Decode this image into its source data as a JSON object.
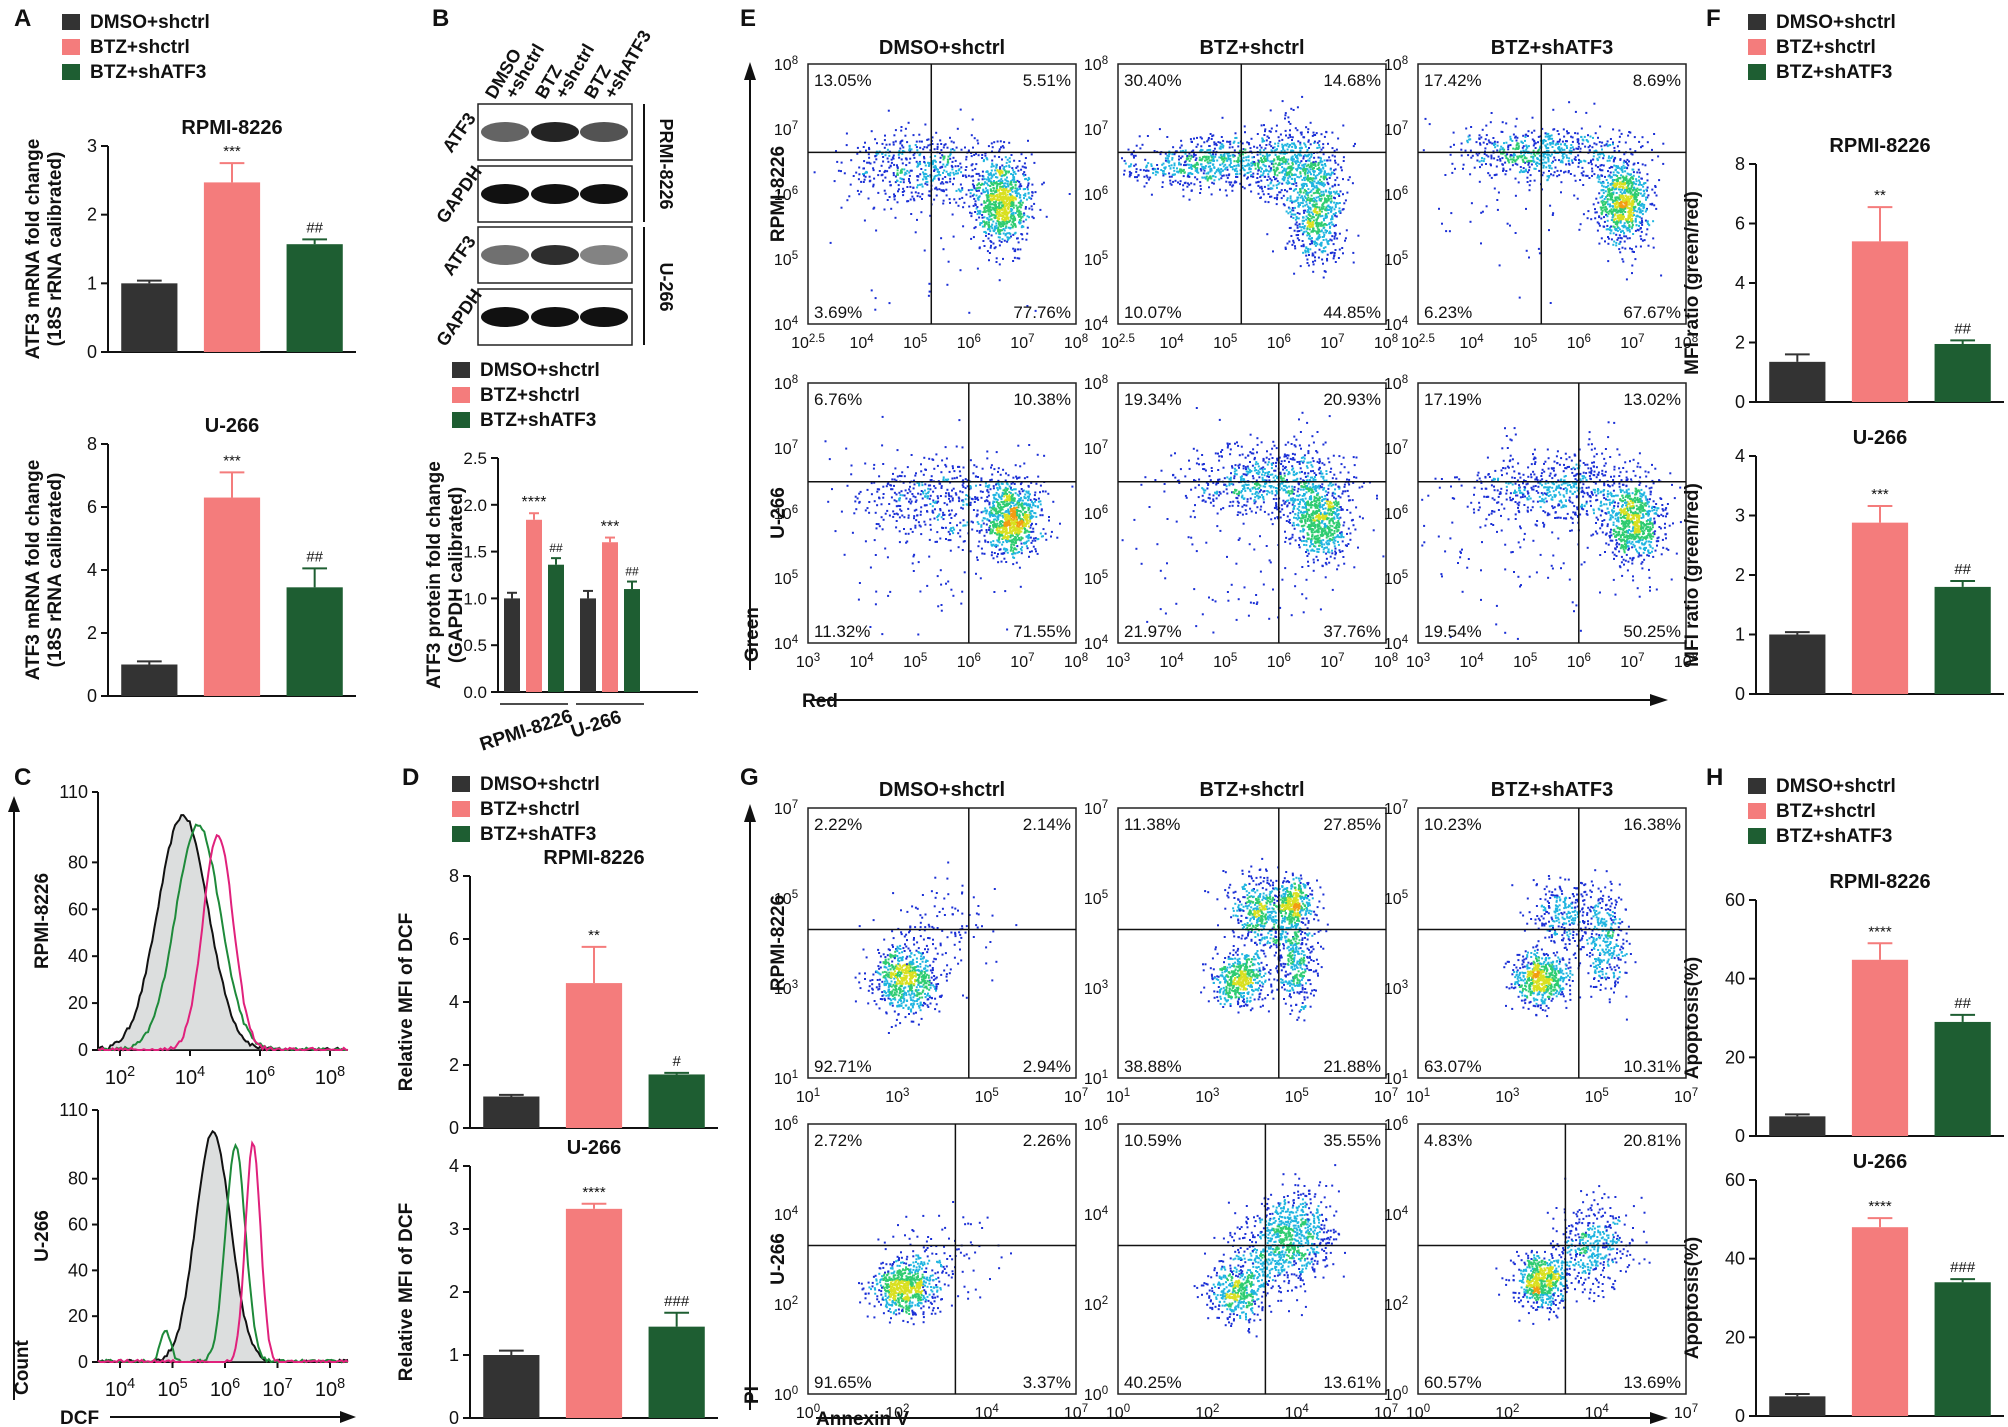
{
  "legend": {
    "groups": [
      "DMSO+shctrl",
      "BTZ+shctrl",
      "BTZ+shATF3"
    ],
    "colors": [
      "#333333",
      "#f47c7c",
      "#1e5e32"
    ]
  },
  "panel_labels": [
    "A",
    "B",
    "C",
    "D",
    "E",
    "F",
    "G",
    "H"
  ],
  "cell_lines": [
    "RPMI-8226",
    "U-266"
  ],
  "chart_data": [
    {
      "id": "A_rpmi",
      "type": "bar",
      "title": "RPMI-8226",
      "ylabel": [
        "ATF3 mRNA fold change",
        "(18S rRNA calibrated)"
      ],
      "ylim": [
        0,
        3
      ],
      "yticks": [
        0,
        1,
        2,
        3
      ],
      "values": [
        1.0,
        2.47,
        1.57
      ],
      "errors": [
        0.04,
        0.28,
        0.07
      ],
      "sig": [
        "",
        "***",
        "##"
      ]
    },
    {
      "id": "A_u266",
      "type": "bar",
      "title": "U-266",
      "ylabel": [
        "ATF3 mRNA fold change",
        "(18S rRNA calibrated)"
      ],
      "ylim": [
        0,
        8
      ],
      "yticks": [
        0,
        2,
        4,
        6,
        8
      ],
      "values": [
        1.0,
        6.3,
        3.45
      ],
      "errors": [
        0.1,
        0.8,
        0.6
      ],
      "sig": [
        "",
        "***",
        "##"
      ]
    },
    {
      "id": "B_protein",
      "type": "bar",
      "ylabel": [
        "ATF3 protein fold change",
        "(GAPDH calibrated)"
      ],
      "ylim": [
        0,
        2.5
      ],
      "yticks": [
        "0.0",
        "0.5",
        "1.0",
        "1.5",
        "2.0",
        "2.5"
      ],
      "categories": [
        "RPMI-8226",
        "U-266"
      ],
      "series": [
        {
          "name": "DMSO+shctrl",
          "values": [
            1.0,
            1.0
          ],
          "errors": [
            0.06,
            0.08
          ]
        },
        {
          "name": "BTZ+shctrl",
          "values": [
            1.84,
            1.6
          ],
          "errors": [
            0.07,
            0.05
          ]
        },
        {
          "name": "BTZ+shATF3",
          "values": [
            1.36,
            1.1
          ],
          "errors": [
            0.07,
            0.08
          ]
        }
      ],
      "sig": [
        [
          "",
          "****",
          "##"
        ],
        [
          "",
          "***",
          "##"
        ]
      ]
    },
    {
      "id": "D_rpmi",
      "type": "bar",
      "title": "RPMI-8226",
      "ylabel": [
        "Relative MFI of DCF"
      ],
      "ylim": [
        0,
        8
      ],
      "yticks": [
        0,
        2,
        4,
        6,
        8
      ],
      "values": [
        1.0,
        4.6,
        1.7
      ],
      "errors": [
        0.05,
        1.15,
        0.05
      ],
      "sig": [
        "",
        "**",
        "#"
      ]
    },
    {
      "id": "D_u266",
      "type": "bar",
      "title": "U-266",
      "ylabel": [
        "Relative MFI of DCF"
      ],
      "ylim": [
        0,
        4
      ],
      "yticks": [
        0,
        1,
        2,
        3,
        4
      ],
      "values": [
        1.0,
        3.32,
        1.45
      ],
      "errors": [
        0.07,
        0.08,
        0.22
      ],
      "sig": [
        "",
        "****",
        "###"
      ]
    },
    {
      "id": "F_rpmi",
      "type": "bar",
      "title": "RPMI-8226",
      "ylabel": [
        "MFI ratio (green/red)"
      ],
      "ylim": [
        0,
        8
      ],
      "yticks": [
        0,
        2,
        4,
        6,
        8
      ],
      "values": [
        1.35,
        5.4,
        1.95
      ],
      "errors": [
        0.25,
        1.15,
        0.12
      ],
      "sig": [
        "",
        "**",
        "##"
      ]
    },
    {
      "id": "F_u266",
      "type": "bar",
      "title": "U-266",
      "ylabel": [
        "MFI ratio (green/red)"
      ],
      "ylim": [
        0,
        4
      ],
      "yticks": [
        0,
        1,
        2,
        3,
        4
      ],
      "values": [
        1.0,
        2.88,
        1.8
      ],
      "errors": [
        0.04,
        0.28,
        0.1
      ],
      "sig": [
        "",
        "***",
        "##"
      ]
    },
    {
      "id": "H_rpmi",
      "type": "bar",
      "title": "RPMI-8226",
      "ylabel": [
        "Apoptosis(%)"
      ],
      "ylim": [
        0,
        60
      ],
      "yticks": [
        0,
        20,
        40,
        60
      ],
      "values": [
        5.0,
        44.8,
        29.0
      ],
      "errors": [
        0.5,
        4.2,
        1.8
      ],
      "sig": [
        "",
        "****",
        "##"
      ]
    },
    {
      "id": "H_u266",
      "type": "bar",
      "title": "U-266",
      "ylabel": [
        "Apoptosis(%)"
      ],
      "ylim": [
        0,
        60
      ],
      "yticks": [
        0,
        20,
        40,
        60
      ],
      "values": [
        5.0,
        48.0,
        34.0
      ],
      "errors": [
        0.6,
        2.3,
        0.8
      ],
      "sig": [
        "",
        "****",
        "###"
      ]
    }
  ],
  "flow_E": {
    "xlabel": "Red",
    "ylabel": "Green",
    "rows": [
      {
        "cell": "RPMI-8226",
        "quadrants": [
          [
            "13.05%",
            "5.51%",
            "3.69%",
            "77.76%"
          ],
          [
            "30.40%",
            "14.68%",
            "10.07%",
            "44.85%"
          ],
          [
            "17.42%",
            "8.69%",
            "6.23%",
            "67.67%"
          ]
        ]
      },
      {
        "cell": "U-266",
        "quadrants": [
          [
            "6.76%",
            "10.38%",
            "11.32%",
            "71.55%"
          ],
          [
            "19.34%",
            "20.93%",
            "21.97%",
            "37.76%"
          ],
          [
            "17.19%",
            "13.02%",
            "19.54%",
            "50.25%"
          ]
        ]
      }
    ],
    "y_ticks": [
      "4",
      "5",
      "6",
      "7",
      "8"
    ],
    "x_ticks_row1": [
      [
        "2.5",
        "4",
        "5",
        "6",
        "7",
        "8"
      ],
      [
        "2.5",
        "4",
        "5",
        "6",
        "7",
        "8"
      ],
      [
        "2.5",
        "4",
        "5",
        "6",
        "7",
        "8"
      ]
    ],
    "x_ticks_row2": [
      [
        "3",
        "4",
        "5",
        "6",
        "7",
        "8"
      ],
      [
        "3",
        "4",
        "5",
        "6",
        "7",
        "8"
      ],
      [
        "3",
        "4",
        "5",
        "6",
        "7",
        "8"
      ]
    ]
  },
  "flow_G": {
    "xlabel": "Annexin V",
    "ylabel": "PI",
    "rows": [
      {
        "cell": "RPMI-8226",
        "quadrants": [
          [
            "2.22%",
            "2.14%",
            "92.71%",
            "2.94%"
          ],
          [
            "11.38%",
            "27.85%",
            "38.88%",
            "21.88%"
          ],
          [
            "10.23%",
            "16.38%",
            "63.07%",
            "10.31%"
          ]
        ]
      },
      {
        "cell": "U-266",
        "quadrants": [
          [
            "2.72%",
            "2.26%",
            "91.65%",
            "3.37%"
          ],
          [
            "10.59%",
            "35.55%",
            "40.25%",
            "13.61%"
          ],
          [
            "4.83%",
            "20.81%",
            "60.57%",
            "13.69%"
          ]
        ]
      }
    ],
    "y_ticks_row1": [
      "1",
      "3",
      "5",
      "7"
    ],
    "y_ticks_row2": [
      "0",
      "2",
      "4",
      "6"
    ],
    "x_ticks_row1": [
      "1",
      "3",
      "5",
      "7"
    ],
    "x_ticks_row2": [
      "0",
      "2",
      "4",
      "7"
    ]
  },
  "histogram_C": {
    "xlabel": "DCF",
    "ylabel": "Count",
    "yticks": [
      "0",
      "20",
      "40",
      "60",
      "80",
      "110"
    ],
    "x_ticks_row1": [
      "2",
      "4",
      "6",
      "8"
    ],
    "x_ticks_row2": [
      "4",
      "5",
      "6",
      "7",
      "8"
    ],
    "line_colors": [
      "#111111",
      "#1e8a3a",
      "#e0217c"
    ]
  },
  "western_B": {
    "lane_labels": [
      "DMSO +shctrl",
      "BTZ +shctrl",
      "BTZ +shATF3"
    ],
    "bands": [
      "ATF3",
      "GAPDH",
      "ATF3",
      "GAPDH"
    ],
    "side_labels": [
      "PRMI-8226",
      "U-266"
    ]
  }
}
